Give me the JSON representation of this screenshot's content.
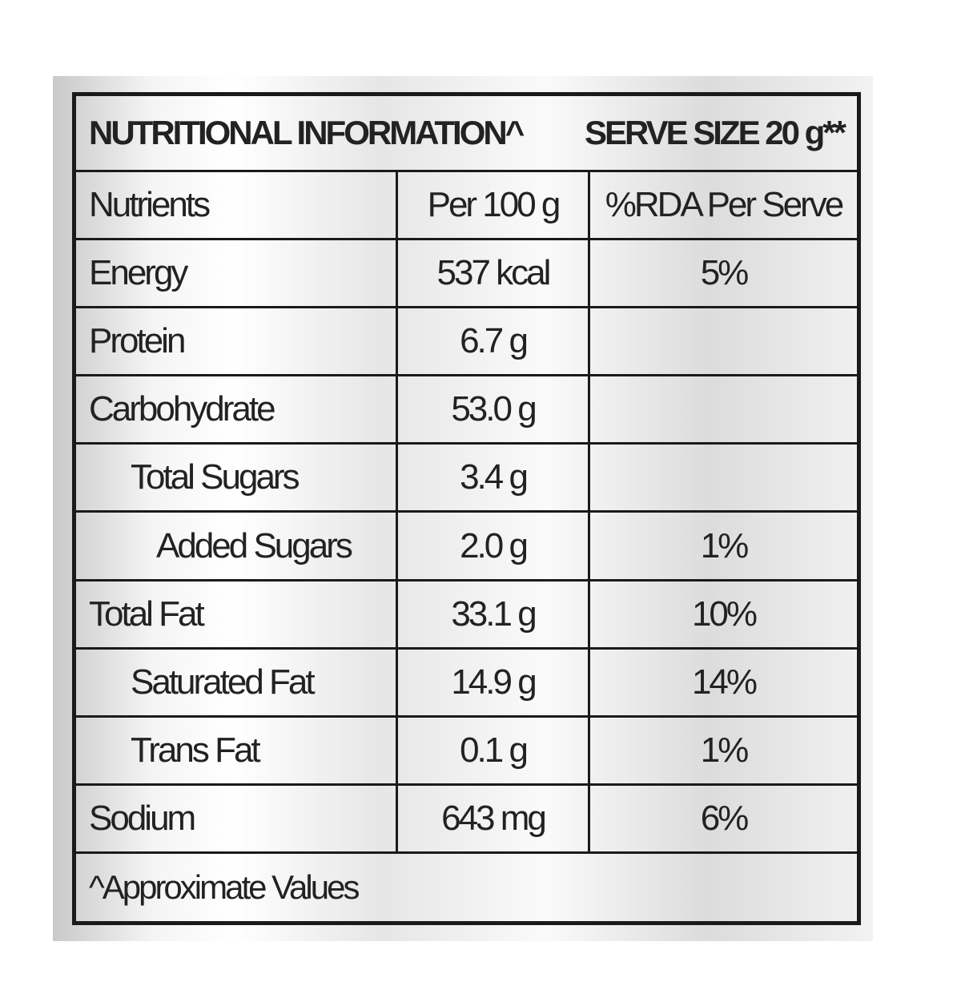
{
  "table": {
    "title": "NUTRITIONAL INFORMATION^",
    "serve_size": "SERVE SIZE 20 g**",
    "columns": [
      "Nutrients",
      "Per 100 g",
      "%RDA Per Serve"
    ],
    "rows": [
      {
        "nutrient": "Energy",
        "per_100g": "537 kcal",
        "rda_per_serve": "5%"
      },
      {
        "nutrient": "Protein",
        "per_100g": "6.7 g"
      },
      {
        "nutrient": "Carbohydrate",
        "per_100g": "53.0 g"
      },
      {
        "nutrient": "Total Sugars",
        "per_100g": "3.4 g"
      },
      {
        "nutrient": "Added Sugars",
        "per_100g": "2.0 g",
        "rda_per_serve": "1%"
      },
      {
        "nutrient": "Total Fat",
        "per_100g": "33.1 g",
        "rda_per_serve": "10%"
      },
      {
        "nutrient": "Saturated Fat",
        "per_100g": "14.9 g",
        "rda_per_serve": "14%"
      },
      {
        "nutrient": "Trans Fat",
        "per_100g": "0.1 g",
        "rda_per_serve": "1%"
      },
      {
        "nutrient": "Sodium",
        "per_100g": "643 mg",
        "rda_per_serve": "6%"
      }
    ],
    "footnote": "^Approximate Values"
  }
}
